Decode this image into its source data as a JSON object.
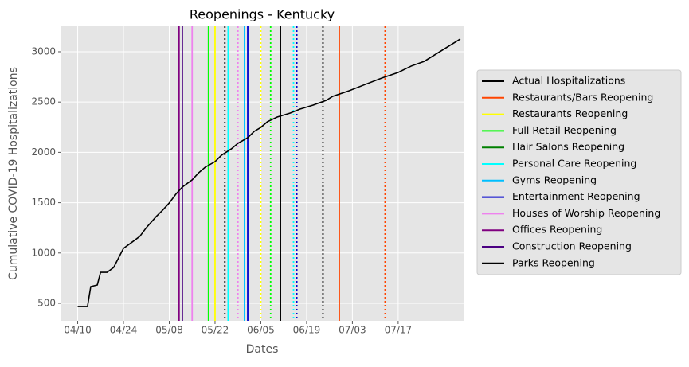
{
  "chart_data": {
    "type": "line",
    "title": "Reopenings - Kentucky",
    "x_label": "Dates",
    "y_label": "Cumulative COVID-19 Hospitalizations",
    "x": [
      "04/10",
      "04/13",
      "04/14",
      "04/16",
      "04/17",
      "04/19",
      "04/21",
      "04/23",
      "04/24",
      "04/26",
      "04/29",
      "05/01",
      "05/04",
      "05/06",
      "05/08",
      "05/10",
      "05/12",
      "05/15",
      "05/17",
      "05/19",
      "05/22",
      "05/24",
      "05/27",
      "05/29",
      "06/01",
      "06/03",
      "06/05",
      "06/07",
      "06/10",
      "06/14",
      "06/17",
      "06/21",
      "06/25",
      "06/27",
      "07/02",
      "07/07",
      "07/12",
      "07/17",
      "07/21",
      "07/25",
      "08/05"
    ],
    "series": [
      {
        "name": "Actual Hospitalizations",
        "color": "#000000",
        "values": [
          468,
          468,
          666,
          682,
          808,
          808,
          856,
          983,
          1046,
          1093,
          1165,
          1252,
          1362,
          1426,
          1497,
          1584,
          1655,
          1727,
          1797,
          1853,
          1908,
          1972,
          2035,
          2090,
          2146,
          2209,
          2248,
          2304,
          2351,
          2391,
          2430,
          2470,
          2517,
          2557,
          2612,
          2676,
          2739,
          2794,
          2858,
          2905,
          3127
        ]
      }
    ],
    "legend": [
      {
        "name": "Restaurants/Bars Reopening",
        "color": "#ff4500"
      },
      {
        "name": "Restaurants Reopening",
        "color": "#ffff00"
      },
      {
        "name": "Full Retail Reopening",
        "color": "#00ff00"
      },
      {
        "name": "Hair Salons Reopening",
        "color": "#008000"
      },
      {
        "name": "Personal Care Reopening",
        "color": "#00ffff"
      },
      {
        "name": "Gyms Reopening",
        "color": "#00bfff"
      },
      {
        "name": "Entertainment Reopening",
        "color": "#0000cd"
      },
      {
        "name": "Houses of Worship Reopening",
        "color": "#ee82ee"
      },
      {
        "name": "Offices Reopening",
        "color": "#800080"
      },
      {
        "name": "Construction Reopening",
        "color": "#4b0082"
      },
      {
        "name": "Parks Reopening",
        "color": "#000000"
      }
    ],
    "vlines": [
      {
        "x": "06/29",
        "color": "#ff4500",
        "style": "solid"
      },
      {
        "x": "07/13",
        "color": "#ff4500",
        "style": "dotted"
      },
      {
        "x": "05/22",
        "color": "#ffff00",
        "style": "solid"
      },
      {
        "x": "06/05",
        "color": "#ffff00",
        "style": "dotted"
      },
      {
        "x": "05/20",
        "color": "#00ff00",
        "style": "solid"
      },
      {
        "x": "06/08",
        "color": "#00ff00",
        "style": "dotted"
      },
      {
        "x": "05/26",
        "color": "#00ffff",
        "style": "solid"
      },
      {
        "x": "06/15",
        "color": "#00ffff",
        "style": "dotted"
      },
      {
        "x": "05/31",
        "color": "#00bfff",
        "style": "solid"
      },
      {
        "x": "06/01",
        "color": "#0000cd",
        "style": "solid"
      },
      {
        "x": "06/16",
        "color": "#0000cd",
        "style": "dotted"
      },
      {
        "x": "05/15",
        "color": "#ee82ee",
        "style": "solid"
      },
      {
        "x": "05/29",
        "color": "#ee82ee",
        "style": "dotted"
      },
      {
        "x": "05/11",
        "color": "#800080",
        "style": "solid"
      },
      {
        "x": "05/12",
        "color": "#4b0082",
        "style": "solid"
      },
      {
        "x": "06/11",
        "color": "#000000",
        "style": "solid"
      },
      {
        "x": "05/25",
        "color": "#000000",
        "style": "dotted"
      },
      {
        "x": "06/24",
        "color": "#000000",
        "style": "dotted"
      }
    ],
    "xlim": [
      "04/05",
      "08/06"
    ],
    "xticks": [
      "04/10",
      "04/24",
      "05/08",
      "05/22",
      "06/05",
      "06/19",
      "07/03",
      "07/17"
    ],
    "ylim": [
      326,
      3253
    ],
    "yticks": [
      500,
      1000,
      1500,
      2000,
      2500,
      3000
    ],
    "grid": true
  }
}
